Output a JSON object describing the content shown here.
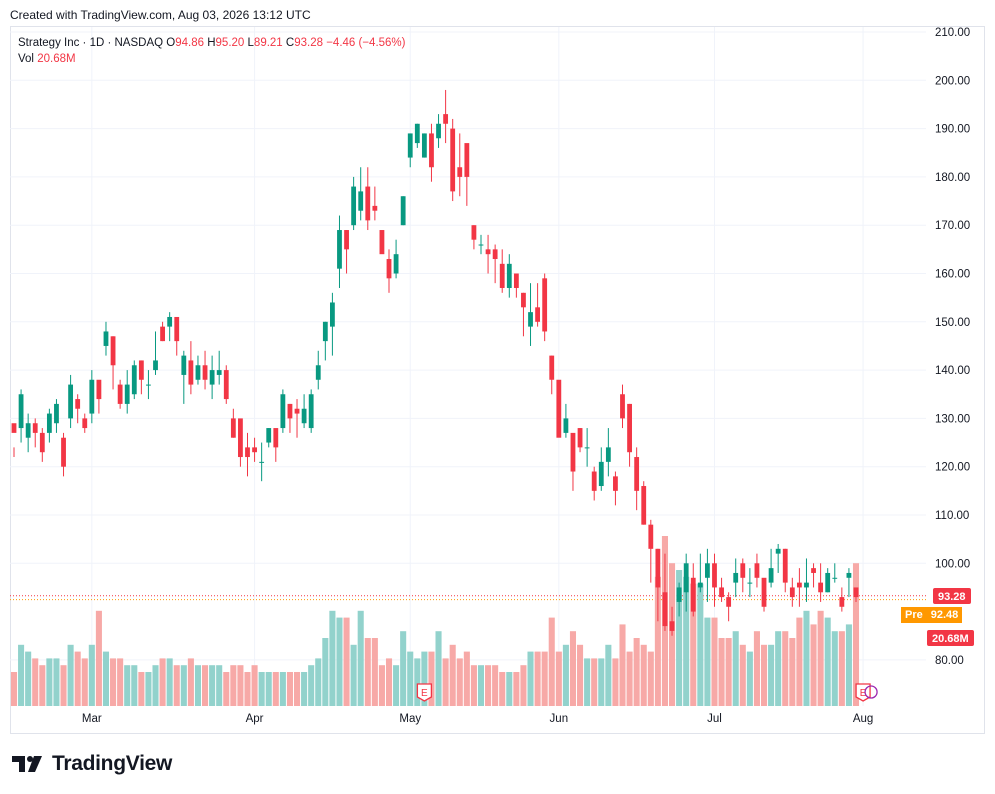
{
  "header": {
    "created_text": "Created with TradingView.com, Aug 03, 2026 13:12 UTC"
  },
  "legend": {
    "symbol": "Strategy Inc · 1D · NASDAQ",
    "o_label": "O",
    "o_value": "94.86",
    "h_label": "H",
    "h_value": "95.20",
    "l_label": "L",
    "l_value": "89.21",
    "c_label": "C",
    "c_value": "93.28",
    "change": "−4.46 (−4.56%)",
    "vol_label": "Vol",
    "vol_value": "20.68M"
  },
  "badges": {
    "last_price": "93.28",
    "pre_label": "Pre",
    "pre_price": "92.48",
    "volume": "20.68M"
  },
  "footer": {
    "brand": "TradingView"
  },
  "colors": {
    "up": "#089981",
    "down": "#f23645",
    "up_vol": "#92d2cc",
    "down_vol": "#f7a9a7",
    "pre": "#ff9800"
  },
  "earnings_marker": "E",
  "chart_data": {
    "type": "candlestick",
    "title": "Strategy Inc · 1D · NASDAQ",
    "y_ticks": [
      "210.00",
      "200.00",
      "190.00",
      "180.00",
      "170.00",
      "160.00",
      "150.00",
      "140.00",
      "130.00",
      "120.00",
      "110.00",
      "100.00",
      "80.00"
    ],
    "ylim": [
      70,
      212
    ],
    "x_ticks": [
      {
        "label": "Mar",
        "index": 11
      },
      {
        "label": "Apr",
        "index": 34
      },
      {
        "label": "May",
        "index": 56
      },
      {
        "label": "Jun",
        "index": 77
      },
      {
        "label": "Jul",
        "index": 99
      },
      {
        "label": "Aug",
        "index": 120
      }
    ],
    "earnings_at_index": [
      58,
      120
    ],
    "last_close": 93.28,
    "pre_market": 92.48,
    "candles": [
      [
        129,
        127,
        124,
        122,
        5
      ],
      [
        128,
        135,
        136,
        125,
        9
      ],
      [
        126,
        129,
        131,
        123,
        8
      ],
      [
        129,
        127,
        130,
        124,
        7
      ],
      [
        127,
        123,
        128,
        121,
        6
      ],
      [
        127,
        131,
        132,
        125,
        7
      ],
      [
        129,
        133,
        134,
        127,
        7
      ],
      [
        126,
        120,
        127,
        118,
        6
      ],
      [
        130,
        137,
        139,
        128,
        9
      ],
      [
        134,
        132,
        135,
        129,
        8
      ],
      [
        130,
        128,
        131,
        127,
        7
      ],
      [
        131,
        138,
        140,
        129,
        9
      ],
      [
        138,
        134,
        137,
        131,
        14
      ],
      [
        145,
        148,
        150,
        143,
        8
      ],
      [
        147,
        141,
        147,
        136,
        7
      ],
      [
        137,
        133,
        138,
        132,
        7
      ],
      [
        133,
        137,
        140,
        131,
        6
      ],
      [
        135,
        141,
        142,
        134,
        6
      ],
      [
        142,
        138,
        142,
        135,
        5
      ],
      [
        137,
        137,
        140,
        134,
        5
      ],
      [
        140,
        142,
        148,
        139,
        6
      ],
      [
        149,
        146,
        150,
        146,
        7
      ],
      [
        149,
        151,
        152,
        146,
        7
      ],
      [
        151,
        146,
        149,
        143,
        6
      ],
      [
        139,
        143,
        144,
        133,
        6
      ],
      [
        142,
        137,
        146,
        135,
        7
      ],
      [
        138,
        141,
        143,
        137,
        6
      ],
      [
        141,
        138,
        144,
        136,
        6
      ],
      [
        137,
        140,
        143,
        134,
        6
      ],
      [
        139,
        140,
        144,
        137,
        6
      ],
      [
        140,
        134,
        141,
        133,
        5
      ],
      [
        130,
        126,
        132,
        126,
        6
      ],
      [
        130,
        122,
        128,
        120,
        6
      ],
      [
        124,
        122,
        127,
        118,
        5
      ],
      [
        124,
        123,
        126,
        121,
        6
      ],
      [
        121,
        121,
        125,
        117,
        5
      ],
      [
        125,
        128,
        128,
        124,
        5
      ],
      [
        128,
        124,
        127,
        121,
        5
      ],
      [
        128,
        135,
        136,
        127,
        5
      ],
      [
        133,
        130,
        133,
        127,
        5
      ],
      [
        132,
        131,
        134,
        126,
        5
      ],
      [
        129,
        132,
        135,
        128,
        5
      ],
      [
        128,
        135,
        136,
        127,
        6
      ],
      [
        138,
        141,
        144,
        136,
        7
      ],
      [
        146,
        150,
        150,
        142,
        10
      ],
      [
        149,
        154,
        156,
        143,
        14
      ],
      [
        161,
        169,
        172,
        157,
        13
      ],
      [
        169,
        165,
        169,
        160,
        13
      ],
      [
        170,
        178,
        180,
        169,
        9
      ],
      [
        173,
        177,
        182,
        171,
        14
      ],
      [
        178,
        171,
        182,
        169,
        10
      ],
      [
        174,
        173,
        178,
        171,
        10
      ],
      [
        169,
        164,
        168,
        165,
        6
      ],
      [
        163,
        159,
        165,
        156,
        7
      ],
      [
        160,
        164,
        167,
        159,
        6
      ],
      [
        170,
        176,
        176,
        170,
        11
      ],
      [
        184,
        189,
        189,
        182,
        8
      ],
      [
        187,
        191,
        191,
        186,
        7
      ],
      [
        184,
        189,
        189,
        184,
        8
      ],
      [
        189,
        182,
        191,
        179,
        8
      ],
      [
        188,
        191,
        193,
        186,
        11
      ],
      [
        193,
        191,
        198,
        187,
        7
      ],
      [
        190,
        177,
        192,
        175,
        9
      ],
      [
        182,
        180,
        189,
        176,
        7
      ],
      [
        187,
        180,
        185,
        174,
        8
      ],
      [
        170,
        167,
        170,
        165,
        6
      ],
      [
        166,
        166,
        168,
        164,
        6
      ],
      [
        165,
        164,
        168,
        160,
        6
      ],
      [
        165,
        163,
        166,
        158,
        6
      ],
      [
        162,
        157,
        165,
        156,
        5
      ],
      [
        157,
        162,
        164,
        155,
        5
      ],
      [
        160,
        157,
        160,
        155,
        5
      ],
      [
        156,
        153,
        156,
        147,
        6
      ],
      [
        149,
        152,
        158,
        145,
        8
      ],
      [
        153,
        150,
        158,
        149,
        8
      ],
      [
        159,
        148,
        160,
        146,
        8
      ],
      [
        143,
        138,
        143,
        135,
        13
      ],
      [
        138,
        126,
        137,
        127,
        8
      ],
      [
        127,
        130,
        133,
        126,
        9
      ],
      [
        127,
        119,
        125,
        115,
        11
      ],
      [
        128,
        124,
        128,
        123,
        9
      ],
      [
        124,
        124,
        128,
        120,
        7
      ],
      [
        119,
        115,
        120,
        113,
        7
      ],
      [
        116,
        121,
        124,
        115,
        7
      ],
      [
        121,
        124,
        128,
        118,
        9
      ],
      [
        118,
        115,
        119,
        112,
        7
      ],
      [
        135,
        130,
        137,
        128,
        12
      ],
      [
        133,
        123,
        133,
        120,
        8
      ],
      [
        122,
        115,
        124,
        111,
        10
      ],
      [
        116,
        108,
        117,
        108,
        9
      ],
      [
        108,
        103,
        109,
        96,
        8
      ],
      [
        103,
        95,
        103,
        88,
        19
      ],
      [
        94,
        87,
        102,
        86,
        25
      ],
      [
        88,
        86,
        91,
        85,
        21
      ],
      [
        92,
        95,
        96,
        89,
        20
      ],
      [
        94,
        100,
        102,
        90,
        19
      ],
      [
        97,
        90,
        100,
        89,
        18
      ],
      [
        95,
        96,
        102,
        94,
        18
      ],
      [
        97,
        100,
        103,
        92,
        13
      ],
      [
        100,
        95,
        102,
        91,
        13
      ],
      [
        95,
        93,
        97,
        92,
        10
      ],
      [
        93,
        91,
        94,
        88,
        10
      ],
      [
        96,
        98,
        101,
        93,
        11
      ],
      [
        100,
        97,
        101,
        94,
        9
      ],
      [
        96,
        96,
        99,
        93,
        8
      ],
      [
        100,
        97,
        102,
        95,
        11
      ],
      [
        97,
        91,
        96,
        90,
        9
      ],
      [
        96,
        99,
        103,
        95,
        9
      ],
      [
        102,
        103,
        104,
        98,
        11
      ],
      [
        103,
        96,
        103,
        94,
        11
      ],
      [
        95,
        93,
        97,
        91,
        10
      ],
      [
        96,
        95,
        99,
        91,
        13
      ],
      [
        95,
        96,
        101,
        92,
        14
      ],
      [
        99,
        98,
        100,
        95,
        12
      ],
      [
        96,
        94,
        100,
        92,
        14
      ],
      [
        94,
        98,
        99,
        94,
        13
      ],
      [
        97,
        97,
        100,
        96,
        11
      ],
      [
        93,
        91,
        95,
        90,
        11
      ],
      [
        97,
        98,
        99,
        93,
        12
      ],
      [
        95,
        93,
        95,
        92,
        21
      ]
    ]
  }
}
